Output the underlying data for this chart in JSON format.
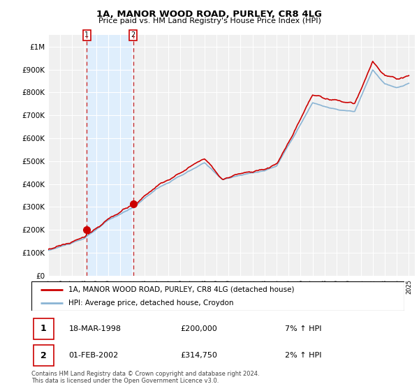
{
  "title": "1A, MANOR WOOD ROAD, PURLEY, CR8 4LG",
  "subtitle": "Price paid vs. HM Land Registry's House Price Index (HPI)",
  "address_label": "1A, MANOR WOOD ROAD, PURLEY, CR8 4LG (detached house)",
  "hpi_label": "HPI: Average price, detached house, Croydon",
  "transaction1_date": "18-MAR-1998",
  "transaction1_price": "£200,000",
  "transaction1_hpi": "7% ↑ HPI",
  "transaction2_date": "01-FEB-2002",
  "transaction2_price": "£314,750",
  "transaction2_hpi": "2% ↑ HPI",
  "footer": "Contains HM Land Registry data © Crown copyright and database right 2024.\nThis data is licensed under the Open Government Licence v3.0.",
  "plot_color_address": "#cc0000",
  "plot_color_hpi": "#8ab4d4",
  "shade_color": "#ddeeff",
  "marker1_x": 1998.21,
  "marker1_y": 200000,
  "marker2_x": 2002.08,
  "marker2_y": 314750,
  "vline1_x": 1998.21,
  "vline2_x": 2002.08,
  "ylim_bottom": 0,
  "ylim_top": 1050000,
  "xlim_left": 1995.0,
  "xlim_right": 2025.5,
  "yticks": [
    0,
    100000,
    200000,
    300000,
    400000,
    500000,
    600000,
    700000,
    800000,
    900000,
    1000000
  ],
  "ytick_labels": [
    "£0",
    "£100K",
    "£200K",
    "£300K",
    "£400K",
    "£500K",
    "£600K",
    "£700K",
    "£800K",
    "£900K",
    "£1M"
  ],
  "bg_color": "#f0f0f0"
}
